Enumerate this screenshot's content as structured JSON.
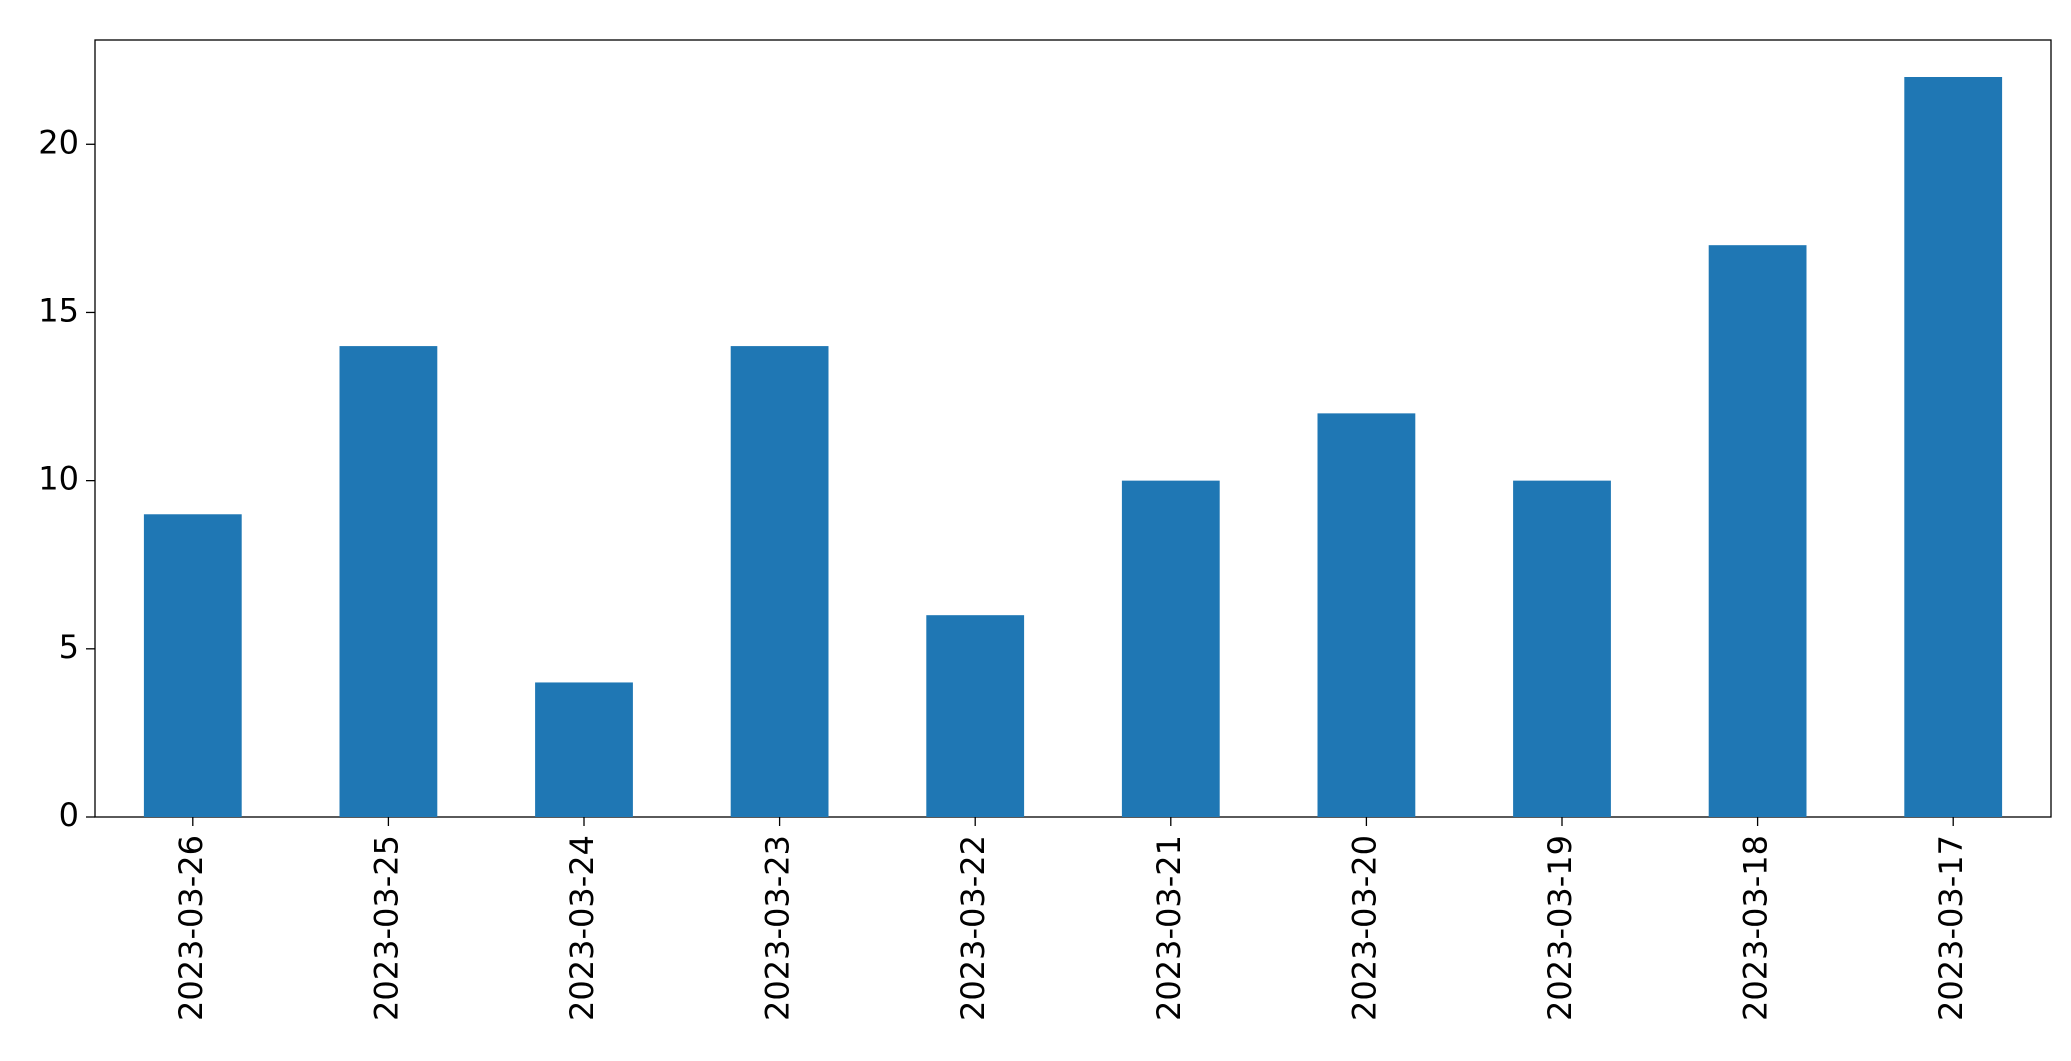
{
  "chart_data": {
    "type": "bar",
    "categories": [
      "2023-03-26",
      "2023-03-25",
      "2023-03-24",
      "2023-03-23",
      "2023-03-22",
      "2023-03-21",
      "2023-03-20",
      "2023-03-19",
      "2023-03-18",
      "2023-03-17"
    ],
    "values": [
      9,
      14,
      4,
      14,
      6,
      10,
      12,
      10,
      17,
      22
    ],
    "color": "#1f77b4",
    "ylim": [
      0,
      23.1
    ],
    "yticks": [
      0,
      5,
      10,
      15,
      20
    ],
    "grid": false
  }
}
